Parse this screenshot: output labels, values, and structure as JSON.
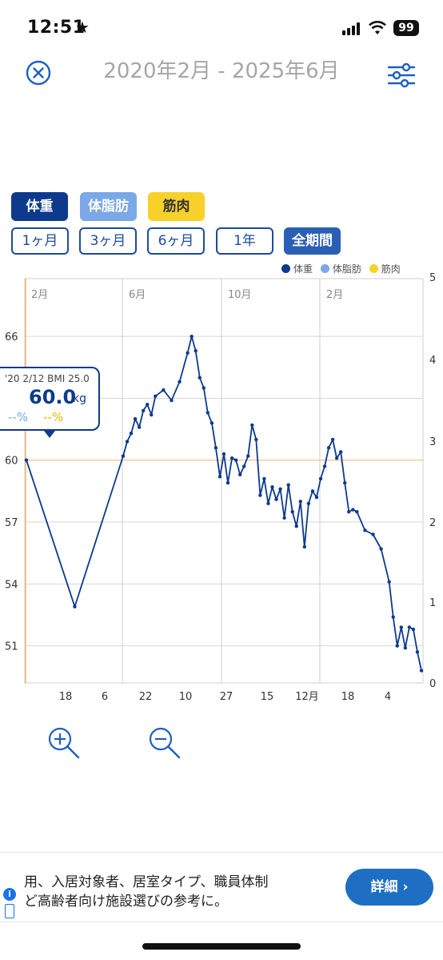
{
  "status_bar": {
    "time": "12:51",
    "star": "★",
    "battery": "99"
  },
  "header": {
    "title": "2020年2月 - 2025年6月",
    "close_icon": "close-circle-icon",
    "settings_icon": "sliders-icon"
  },
  "type_buttons": {
    "weight": "体重",
    "body_fat": "体脂肪",
    "muscle": "筋肉"
  },
  "period_buttons": [
    "1ヶ月",
    "3ヶ月",
    "6ヶ月",
    "1年",
    "全期間"
  ],
  "active_period": "全期間",
  "legend": [
    {
      "label": "体重",
      "color": "#0d3a8c"
    },
    {
      "label": "体脂肪",
      "color": "#7ba8e6"
    },
    {
      "label": "筋肉",
      "color": "#f7d12a"
    }
  ],
  "tooltip": {
    "sub": "'20 2/12 BMI 25.0",
    "value": "60.0",
    "unit": "kg",
    "fat": "--%",
    "muscle": "--%"
  },
  "chart_data": {
    "type": "line",
    "series": [
      {
        "name": "体重",
        "color": "#0d3a8c",
        "x_index": [
          0,
          6,
          12,
          12.5,
          13,
          13.5,
          14,
          14.5,
          15,
          15.5,
          16,
          17,
          18,
          19,
          20,
          20.5,
          21,
          21.5,
          22,
          22.5,
          23,
          23.5,
          24,
          24.5,
          25,
          25.5,
          26,
          26.5,
          27,
          27.5,
          28,
          28.5,
          29,
          29.5,
          30,
          30.5,
          31,
          31.5,
          32,
          32.5,
          33,
          33.5,
          34,
          34.5,
          35,
          35.5,
          36,
          36.5,
          37,
          37.5,
          38,
          38.5,
          39,
          39.5,
          40,
          40.5,
          41,
          42,
          43,
          44,
          45,
          45.5,
          46,
          46.5,
          47,
          47.5,
          48,
          48.5,
          49
        ],
        "values": [
          60.0,
          52.9,
          60.2,
          60.9,
          61.3,
          62.0,
          61.6,
          62.4,
          62.7,
          62.2,
          63.1,
          63.4,
          62.9,
          63.8,
          65.2,
          66.0,
          65.3,
          64.0,
          63.5,
          62.3,
          61.8,
          60.6,
          59.2,
          60.3,
          58.9,
          60.1,
          60.0,
          59.3,
          59.7,
          60.2,
          61.7,
          61.0,
          58.3,
          59.1,
          57.9,
          58.7,
          58.1,
          58.6,
          57.2,
          58.8,
          57.5,
          56.8,
          58.0,
          55.8,
          57.9,
          58.5,
          58.2,
          59.1,
          59.7,
          60.6,
          61.0,
          60.1,
          60.4,
          58.9,
          57.5,
          57.6,
          57.5,
          56.6,
          56.4,
          55.7,
          54.1,
          52.4,
          51.0,
          51.9,
          50.9,
          51.9,
          51.8,
          50.7,
          49.8
        ]
      }
    ],
    "y_left_ticks": [
      51,
      54,
      57,
      60,
      63,
      66
    ],
    "y_left_labels": [
      "51",
      "54",
      "57",
      "60",
      "",
      "66"
    ],
    "y_right_ticks": [
      "5",
      "4",
      "3",
      "2",
      "1",
      "0"
    ],
    "x_ticks": [
      "18",
      "6",
      "22",
      "10",
      "27",
      "15",
      "12月",
      "18",
      "4"
    ],
    "month_labels": [
      "2月",
      "6月",
      "10月",
      "2月"
    ],
    "ylim_left": [
      49.2,
      68.8
    ],
    "ylim_right": [
      0,
      5
    ],
    "reference_line": 60.0,
    "grid": true,
    "legend_position": "top-right"
  },
  "zoom": {
    "zoom_in_icon": "zoom-in-icon",
    "zoom_out_icon": "zoom-out-icon"
  },
  "ad": {
    "line1": "用、入居対象者、居室タイプ、職員体制",
    "line2": "ど高齢者向け施設選びの参考に。",
    "button": "詳細 ›"
  }
}
